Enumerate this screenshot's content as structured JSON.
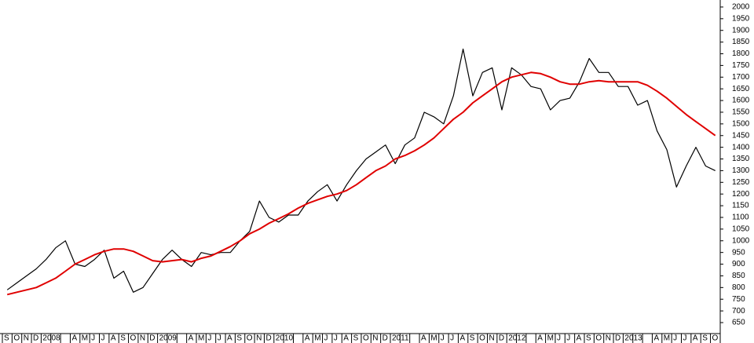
{
  "chart_data": {
    "type": "line",
    "categories": [
      "S",
      "O",
      "N",
      "D",
      "2008",
      null,
      null,
      "A",
      "M",
      "J",
      "J",
      "A",
      "S",
      "O",
      "N",
      "D",
      "2009",
      null,
      null,
      "A",
      "M",
      "J",
      "J",
      "A",
      "S",
      "O",
      "N",
      "D",
      "2010",
      null,
      null,
      "A",
      "M",
      "J",
      "J",
      "A",
      "S",
      "O",
      "N",
      "D",
      "2011",
      null,
      null,
      "A",
      "M",
      "J",
      "J",
      "A",
      "S",
      "O",
      "N",
      "D",
      "2012",
      null,
      null,
      "A",
      "M",
      "J",
      "J",
      "A",
      "S",
      "O",
      "N",
      "D",
      "2013",
      null,
      null,
      "A",
      "M",
      "J",
      "J",
      "A",
      "S",
      "O"
    ],
    "series": [
      {
        "color": "#000000",
        "values": [
          790,
          820,
          850,
          880,
          920,
          970,
          1000,
          900,
          890,
          920,
          960,
          840,
          870,
          780,
          800,
          860,
          920,
          960,
          920,
          890,
          950,
          940,
          950,
          950,
          1000,
          1040,
          1170,
          1100,
          1080,
          1110,
          1110,
          1170,
          1210,
          1240,
          1170,
          1240,
          1300,
          1350,
          1380,
          1410,
          1330,
          1410,
          1440,
          1550,
          1530,
          1500,
          1620,
          1820,
          1620,
          1720,
          1740,
          1560,
          1740,
          1710,
          1660,
          1650,
          1560,
          1600,
          1610,
          1680,
          1780,
          1720,
          1720,
          1660,
          1660,
          1580,
          1600,
          1470,
          1390,
          1230,
          1320,
          1400,
          1320,
          1300
        ]
      },
      {
        "color": "#e00000",
        "values": [
          770,
          780,
          790,
          800,
          820,
          840,
          870,
          900,
          920,
          940,
          955,
          965,
          965,
          955,
          935,
          915,
          910,
          915,
          920,
          910,
          925,
          935,
          955,
          975,
          1000,
          1030,
          1050,
          1075,
          1095,
          1115,
          1140,
          1160,
          1175,
          1190,
          1200,
          1215,
          1240,
          1270,
          1300,
          1320,
          1350,
          1365,
          1385,
          1410,
          1440,
          1480,
          1520,
          1550,
          1590,
          1620,
          1650,
          1680,
          1700,
          1710,
          1720,
          1715,
          1700,
          1680,
          1670,
          1670,
          1680,
          1685,
          1680,
          1680,
          1680,
          1680,
          1665,
          1640,
          1610,
          1575,
          1540,
          1510,
          1480,
          1450
        ]
      }
    ],
    "ylim": [
      603,
      2030
    ],
    "yticks": [
      650,
      700,
      750,
      800,
      850,
      900,
      950,
      1000,
      1050,
      1100,
      1150,
      1200,
      1250,
      1300,
      1350,
      1400,
      1450,
      1500,
      1550,
      1600,
      1650,
      1700,
      1750,
      1800,
      1850,
      1900,
      1950,
      2000
    ]
  }
}
